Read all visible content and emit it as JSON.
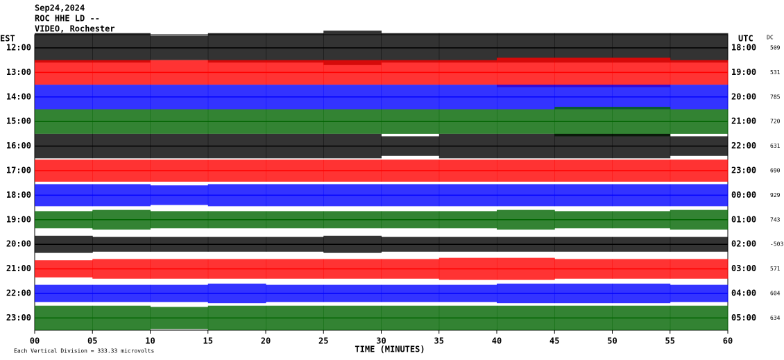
{
  "chart_data": {
    "type": "helicorder",
    "title": "Sep24,2024",
    "subtitle": "ROC HHE LD --",
    "station": "VIDEO, Rochester",
    "left_axis_label": "EST",
    "right_axis_label": "UTC",
    "dc_label": "DC",
    "xlabel": "TIME (MINUTES)",
    "scale_note": "Each Vertical Division = 333.33 microvolts",
    "xlim": [
      0,
      60
    ],
    "xticks": [
      {
        "value": 0,
        "label": "00"
      },
      {
        "value": 5,
        "label": "05"
      },
      10,
      15,
      20,
      25,
      30,
      35,
      40,
      45,
      50,
      55,
      60
    ],
    "rows": [
      {
        "est": "12:00",
        "utc": "18:00",
        "dc": 509,
        "color": "#000000",
        "envelope": [
          0.6,
          0.6,
          0.5,
          0.6,
          0.6,
          0.7,
          0.6,
          0.6,
          0.6,
          0.6,
          0.6,
          0.6
        ]
      },
      {
        "est": "13:00",
        "utc": "19:00",
        "dc": 531,
        "color": "#ff0000",
        "envelope": [
          0.5,
          0.5,
          0.5,
          0.5,
          0.5,
          0.5,
          0.5,
          0.5,
          0.6,
          0.6,
          0.6,
          0.5
        ]
      },
      {
        "est": "14:00",
        "utc": "20:00",
        "dc": 785,
        "color": "#0000ff",
        "envelope": [
          0.5,
          0.5,
          0.5,
          0.5,
          0.5,
          0.5,
          0.5,
          0.5,
          0.5,
          0.5,
          0.5,
          0.5
        ]
      },
      {
        "est": "15:00",
        "utc": "21:00",
        "dc": 720,
        "color": "#006400",
        "envelope": [
          0.5,
          0.5,
          0.5,
          0.5,
          0.5,
          0.5,
          0.5,
          0.5,
          0.5,
          0.6,
          0.6,
          0.5
        ]
      },
      {
        "est": "16:00",
        "utc": "22:00",
        "dc": 631,
        "color": "#000000",
        "envelope": [
          0.5,
          0.5,
          0.5,
          0.5,
          0.5,
          0.5,
          0.4,
          0.5,
          0.5,
          0.5,
          0.5,
          0.4
        ]
      },
      {
        "est": "17:00",
        "utc": "23:00",
        "dc": 690,
        "color": "#ff0000",
        "envelope": [
          0.45,
          0.45,
          0.45,
          0.45,
          0.45,
          0.45,
          0.45,
          0.45,
          0.45,
          0.45,
          0.45,
          0.45
        ]
      },
      {
        "est": "18:00",
        "utc": "00:00",
        "dc": 929,
        "color": "#0000ff",
        "envelope": [
          0.45,
          0.45,
          0.4,
          0.45,
          0.45,
          0.45,
          0.45,
          0.45,
          0.45,
          0.45,
          0.45,
          0.45
        ]
      },
      {
        "est": "19:00",
        "utc": "01:00",
        "dc": 743,
        "color": "#006400",
        "envelope": [
          0.35,
          0.4,
          0.35,
          0.35,
          0.35,
          0.35,
          0.35,
          0.35,
          0.4,
          0.35,
          0.35,
          0.4
        ]
      },
      {
        "est": "20:00",
        "utc": "02:00",
        "dc": -503,
        "color": "#000000",
        "envelope": [
          0.35,
          0.3,
          0.3,
          0.3,
          0.3,
          0.35,
          0.3,
          0.3,
          0.3,
          0.3,
          0.3,
          0.3
        ]
      },
      {
        "est": "21:00",
        "utc": "03:00",
        "dc": 571,
        "color": "#ff0000",
        "envelope": [
          0.35,
          0.4,
          0.4,
          0.4,
          0.4,
          0.4,
          0.4,
          0.45,
          0.45,
          0.4,
          0.4,
          0.4
        ]
      },
      {
        "est": "22:00",
        "utc": "04:00",
        "dc": 604,
        "color": "#0000ff",
        "envelope": [
          0.35,
          0.35,
          0.35,
          0.4,
          0.35,
          0.35,
          0.35,
          0.35,
          0.4,
          0.4,
          0.4,
          0.35
        ]
      },
      {
        "est": "23:00",
        "utc": "05:00",
        "dc": 634,
        "color": "#006400",
        "envelope": [
          0.5,
          0.5,
          0.45,
          0.5,
          0.5,
          0.5,
          0.5,
          0.5,
          0.5,
          0.5,
          0.5,
          0.5
        ]
      }
    ]
  }
}
